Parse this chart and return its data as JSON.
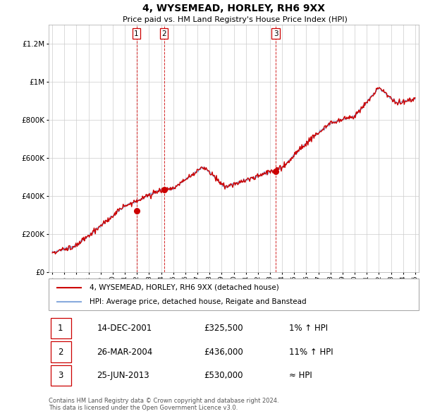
{
  "title": "4, WYSEMEAD, HORLEY, RH6 9XX",
  "subtitle": "Price paid vs. HM Land Registry's House Price Index (HPI)",
  "ylim": [
    0,
    1300000
  ],
  "yticks": [
    0,
    200000,
    400000,
    600000,
    800000,
    1000000,
    1200000
  ],
  "ytick_labels": [
    "£0",
    "£200K",
    "£400K",
    "£600K",
    "£800K",
    "£1M",
    "£1.2M"
  ],
  "sale_dates_num": [
    2001.96,
    2004.23,
    2013.48
  ],
  "sale_prices": [
    325500,
    436000,
    530000
  ],
  "sale_labels": [
    "1",
    "2",
    "3"
  ],
  "sale_line_color": "#cc0000",
  "hpi_line_color": "#88aadd",
  "vline_color": "#cc0000",
  "grid_color": "#cccccc",
  "legend_entries": [
    "4, WYSEMEAD, HORLEY, RH6 9XX (detached house)",
    "HPI: Average price, detached house, Reigate and Banstead"
  ],
  "table_data": [
    [
      "1",
      "14-DEC-2001",
      "£325,500",
      "1% ↑ HPI"
    ],
    [
      "2",
      "26-MAR-2004",
      "£436,000",
      "11% ↑ HPI"
    ],
    [
      "3",
      "25-JUN-2013",
      "£530,000",
      "≈ HPI"
    ]
  ],
  "footer": "Contains HM Land Registry data © Crown copyright and database right 2024.\nThis data is licensed under the Open Government Licence v3.0.",
  "start_year": 1995,
  "end_year": 2025
}
